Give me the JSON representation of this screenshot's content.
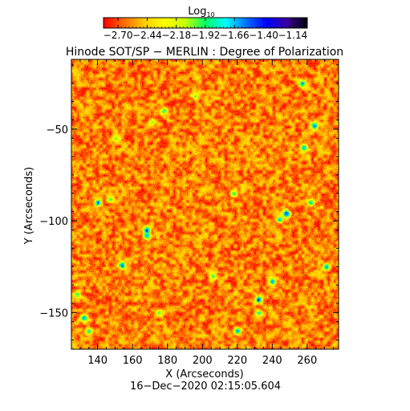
{
  "chart_data": {
    "type": "heatmap",
    "title": "Hinode SOT/SP − MERLIN : Degree of Polarization",
    "xlabel": "X (Arcseconds)",
    "ylabel": "Y (Arcseconds)",
    "timestamp": "16−Dec−2020 02:15:05.604",
    "colorbar": {
      "label_main": "Log",
      "label_sub": "10",
      "range": [
        -2.83,
        -1.01
      ],
      "ticks": [
        {
          "value": -2.7,
          "label": "−2.70"
        },
        {
          "value": -2.44,
          "label": "−2.44"
        },
        {
          "value": -2.18,
          "label": "−2.18"
        },
        {
          "value": -1.92,
          "label": "−1.92"
        },
        {
          "value": -1.66,
          "label": "−1.66"
        },
        {
          "value": -1.4,
          "label": "−1.40"
        },
        {
          "value": -1.14,
          "label": "−1.14"
        }
      ],
      "stops": [
        "#ff0000",
        "#ff6a00",
        "#ffcc00",
        "#ffff00",
        "#c8ff00",
        "#00ff66",
        "#00ffff",
        "#0070ff",
        "#0000ff",
        "#3a00a0",
        "#000000"
      ]
    },
    "xlim": [
      125,
      278
    ],
    "ylim": [
      -170,
      -12
    ],
    "xticks": [
      {
        "value": 140,
        "label": "140"
      },
      {
        "value": 160,
        "label": "160"
      },
      {
        "value": 180,
        "label": "180"
      },
      {
        "value": 200,
        "label": "200"
      },
      {
        "value": 220,
        "label": "220"
      },
      {
        "value": 240,
        "label": "240"
      },
      {
        "value": 260,
        "label": "260"
      }
    ],
    "yticks": [
      {
        "value": -50,
        "label": "−50"
      },
      {
        "value": -100,
        "label": "−100"
      },
      {
        "value": -150,
        "label": "−150"
      }
    ],
    "field": {
      "background_level": -2.6,
      "features": [
        {
          "x": 178,
          "y": -40,
          "level": -1.7
        },
        {
          "x": 171,
          "y": -46,
          "level": -1.9
        },
        {
          "x": 140,
          "y": -90,
          "level": -1.3
        },
        {
          "x": 147,
          "y": -88,
          "level": -1.8
        },
        {
          "x": 168,
          "y": -105,
          "level": -1.2
        },
        {
          "x": 168,
          "y": -108,
          "level": -1.5
        },
        {
          "x": 154,
          "y": -124,
          "level": -1.2
        },
        {
          "x": 248,
          "y": -96,
          "level": -1.1
        },
        {
          "x": 244,
          "y": -99,
          "level": -1.5
        },
        {
          "x": 240,
          "y": -133,
          "level": -1.4
        },
        {
          "x": 232,
          "y": -143,
          "level": -1.1
        },
        {
          "x": 220,
          "y": -160,
          "level": -1.4
        },
        {
          "x": 132,
          "y": -153,
          "level": -1.4
        },
        {
          "x": 135,
          "y": -160,
          "level": -1.7
        },
        {
          "x": 258,
          "y": -60,
          "level": -1.4
        },
        {
          "x": 264,
          "y": -48,
          "level": -1.3
        },
        {
          "x": 257,
          "y": -25,
          "level": -1.4
        },
        {
          "x": 262,
          "y": -90,
          "level": -1.5
        },
        {
          "x": 271,
          "y": -125,
          "level": -1.4
        },
        {
          "x": 218,
          "y": -85,
          "level": -1.8
        },
        {
          "x": 128,
          "y": -140,
          "level": -1.7
        },
        {
          "x": 196,
          "y": -32,
          "level": -1.9
        },
        {
          "x": 232,
          "y": -150,
          "level": -1.7
        },
        {
          "x": 150,
          "y": -55,
          "level": -1.9
        },
        {
          "x": 206,
          "y": -130,
          "level": -1.8
        },
        {
          "x": 175,
          "y": -150,
          "level": -1.8
        }
      ]
    }
  }
}
